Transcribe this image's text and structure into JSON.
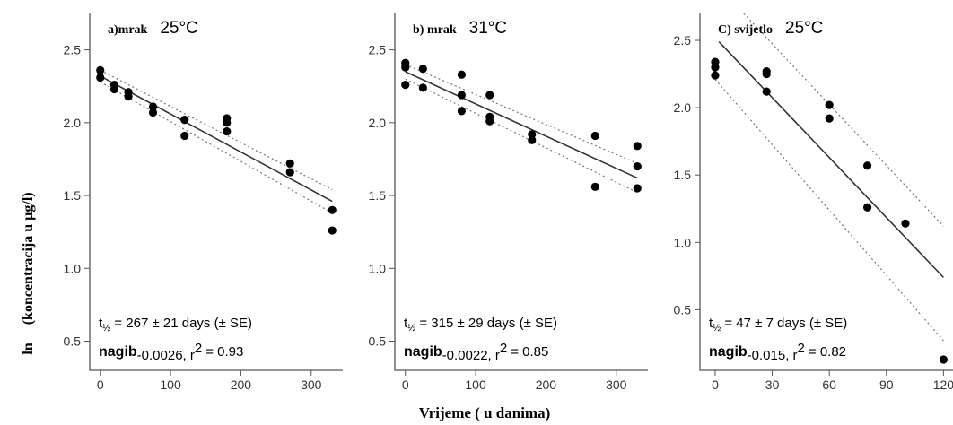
{
  "figure": {
    "ylabel_prefix": "ln",
    "ylabel": "(koncentracija u µg/l)",
    "xlabel": "Vrijeme ( u danima)"
  },
  "chart_data": [
    {
      "type": "scatter",
      "panel_label": "a)mrak",
      "temperature": "25°C",
      "xlim": [
        -15,
        345
      ],
      "ylim": [
        0.3,
        2.75
      ],
      "xticks": [
        0,
        100,
        200,
        300
      ],
      "yticks": [
        0.5,
        1.0,
        1.5,
        2.0,
        2.5
      ],
      "points": [
        [
          0,
          2.36
        ],
        [
          0,
          2.31
        ],
        [
          20,
          2.26
        ],
        [
          20,
          2.23
        ],
        [
          40,
          2.21
        ],
        [
          40,
          2.18
        ],
        [
          75,
          2.11
        ],
        [
          75,
          2.07
        ],
        [
          120,
          2.02
        ],
        [
          120,
          1.91
        ],
        [
          180,
          2.03
        ],
        [
          180,
          2.0
        ],
        [
          180,
          1.94
        ],
        [
          270,
          1.72
        ],
        [
          270,
          1.66
        ],
        [
          330,
          1.4
        ],
        [
          330,
          1.26
        ]
      ],
      "fit": {
        "x": [
          0,
          330
        ],
        "y": [
          2.32,
          1.46
        ]
      },
      "ci_upper": {
        "x": [
          0,
          330
        ],
        "y": [
          2.36,
          1.54
        ]
      },
      "ci_lower": {
        "x": [
          0,
          330
        ],
        "y": [
          2.28,
          1.38
        ]
      },
      "half_life": "= 267 ± 21 days (± SE)",
      "slope": "-0.0026",
      "r2": "= 0.93"
    },
    {
      "type": "scatter",
      "panel_label": "b) mrak",
      "temperature": "31°C",
      "xlim": [
        -15,
        345
      ],
      "ylim": [
        0.3,
        2.75
      ],
      "xticks": [
        0,
        100,
        200,
        300
      ],
      "yticks": [
        0.5,
        1.0,
        1.5,
        2.0,
        2.5
      ],
      "points": [
        [
          0,
          2.41
        ],
        [
          0,
          2.38
        ],
        [
          0,
          2.26
        ],
        [
          25,
          2.37
        ],
        [
          25,
          2.24
        ],
        [
          80,
          2.33
        ],
        [
          80,
          2.19
        ],
        [
          80,
          2.08
        ],
        [
          120,
          2.19
        ],
        [
          120,
          2.04
        ],
        [
          120,
          2.01
        ],
        [
          180,
          1.92
        ],
        [
          180,
          1.88
        ],
        [
          270,
          1.91
        ],
        [
          270,
          1.56
        ],
        [
          330,
          1.84
        ],
        [
          330,
          1.7
        ],
        [
          330,
          1.55
        ]
      ],
      "fit": {
        "x": [
          0,
          330
        ],
        "y": [
          2.35,
          1.62
        ]
      },
      "ci_upper": {
        "x": [
          0,
          330
        ],
        "y": [
          2.4,
          1.72
        ]
      },
      "ci_lower": {
        "x": [
          0,
          330
        ],
        "y": [
          2.3,
          1.52
        ]
      },
      "half_life": "= 315 ± 29 days (± SE)",
      "slope": "-0.0022",
      "r2": "= 0.85"
    },
    {
      "type": "scatter",
      "panel_label": "C) svijetlo",
      "temperature": "25°C",
      "xlim": [
        -8,
        125
      ],
      "ylim": [
        0.05,
        2.7
      ],
      "xticks": [
        0,
        30,
        60,
        90,
        120
      ],
      "yticks": [
        0.5,
        1.0,
        1.5,
        2.0,
        2.5
      ],
      "points": [
        [
          0,
          2.34
        ],
        [
          0,
          2.3
        ],
        [
          0,
          2.24
        ],
        [
          27,
          2.27
        ],
        [
          27,
          2.25
        ],
        [
          27,
          2.12
        ],
        [
          60,
          2.02
        ],
        [
          60,
          1.92
        ],
        [
          80,
          1.57
        ],
        [
          80,
          1.26
        ],
        [
          100,
          1.14
        ],
        [
          120,
          0.13
        ]
      ],
      "fit": {
        "x": [
          2,
          120
        ],
        "y": [
          2.49,
          0.74
        ]
      },
      "ci_upper": {
        "x": [
          15,
          120
        ],
        "y": [
          2.7,
          1.12
        ]
      },
      "ci_lower": {
        "x": [
          0,
          120
        ],
        "y": [
          2.21,
          0.27
        ]
      },
      "half_life": "= 47 ± 7 days (± SE)",
      "slope": "-0.015",
      "r2": "= 0.82"
    }
  ]
}
